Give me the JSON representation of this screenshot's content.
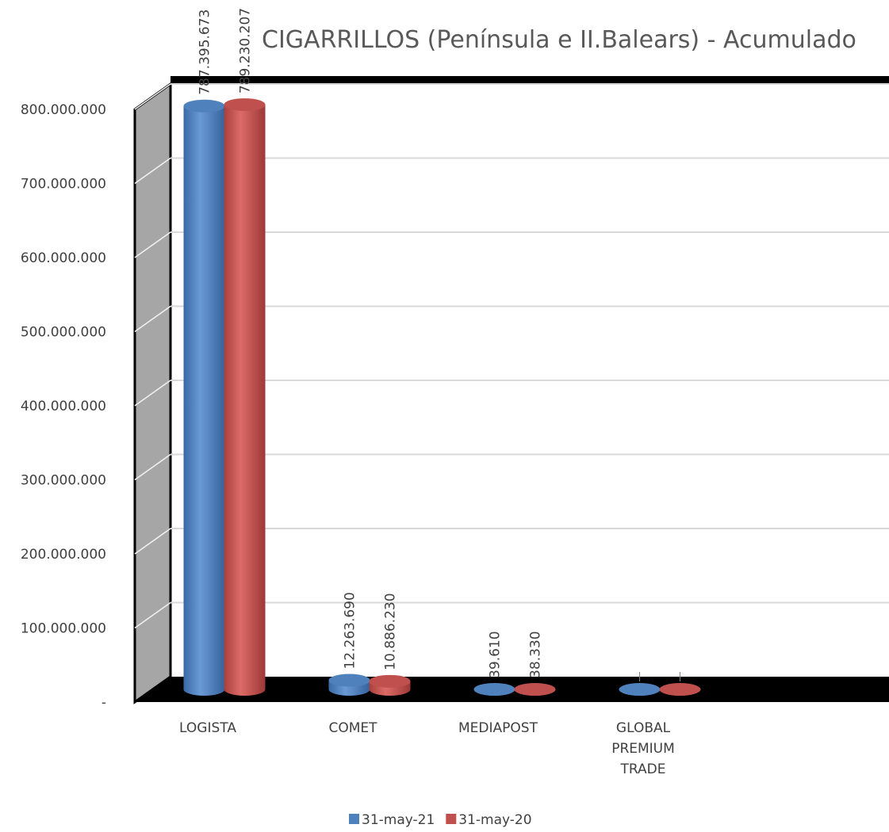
{
  "chart_data": {
    "type": "bar3d",
    "title": "CIGARRILLOS  (Península e II.Balears) - Acumulado",
    "categories": [
      "LOGISTA",
      "COMET",
      "MEDIAPOST",
      "GLOBAL PREMIUM TRADE"
    ],
    "series": [
      {
        "name": "31-may-21",
        "color": "#4f81bd",
        "values": [
          787395673,
          12263690,
          39610,
          0
        ],
        "value_labels": [
          "787.395.673",
          "12.263.690",
          "39.610",
          null
        ]
      },
      {
        "name": "31-may-20",
        "color": "#c0504d",
        "values": [
          789230207,
          10886230,
          38330,
          0
        ],
        "value_labels": [
          "789.230.207",
          "10.886.230",
          "38.330",
          null
        ]
      }
    ],
    "ylim": [
      0,
      800000000
    ],
    "yticks": [
      {
        "value": 0,
        "label": "-"
      },
      {
        "value": 100000000,
        "label": "100.000.000"
      },
      {
        "value": 200000000,
        "label": "200.000.000"
      },
      {
        "value": 300000000,
        "label": "300.000.000"
      },
      {
        "value": 400000000,
        "label": "400.000.000"
      },
      {
        "value": 500000000,
        "label": "500.000.000"
      },
      {
        "value": 600000000,
        "label": "600.000.000"
      },
      {
        "value": 700000000,
        "label": "700.000.000"
      },
      {
        "value": 800000000,
        "label": "800.000.000"
      }
    ],
    "grid": true,
    "legend": "bottom"
  }
}
